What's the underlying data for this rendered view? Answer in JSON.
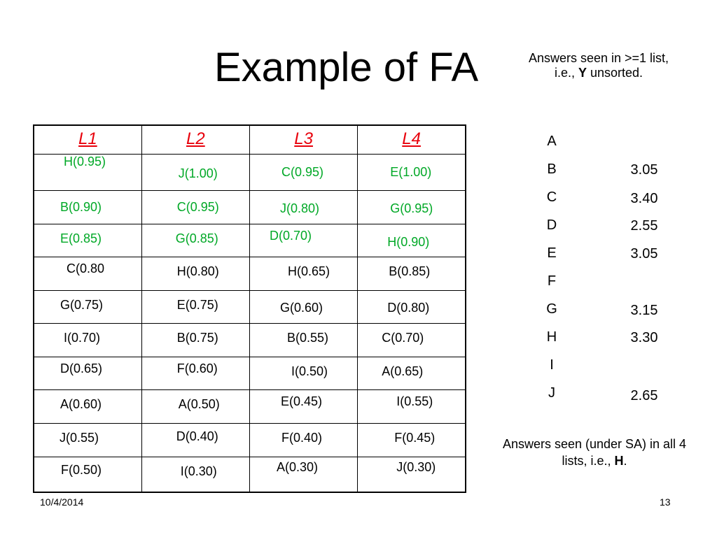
{
  "title": "Example of FA",
  "note_top": {
    "prefix": "Answers seen in >=1 list, i.e., ",
    "bold": "Y",
    "suffix": " unsorted."
  },
  "note_bottom": {
    "prefix": "Answers seen (under SA) in all 4 lists, i.e., ",
    "bold": "H",
    "suffix": "."
  },
  "headers": [
    "L1",
    "L2",
    "L3",
    "L4"
  ],
  "rows": [
    [
      "H(0.95)",
      "J(1.00)",
      "C(0.95)",
      "E(1.00)"
    ],
    [
      "B(0.90)",
      "C(0.95)",
      "J(0.80)",
      "G(0.95)"
    ],
    [
      "E(0.85)",
      "G(0.85)",
      "D(0.70)",
      "H(0.90)"
    ],
    [
      "C(0.80",
      "H(0.80)",
      "H(0.65)",
      "B(0.85)"
    ],
    [
      "G(0.75)",
      "E(0.75)",
      "G(0.60)",
      "D(0.80)"
    ],
    [
      "I(0.70)",
      "B(0.75)",
      "B(0.55)",
      "C(0.70)"
    ],
    [
      "D(0.65)",
      "F(0.60)",
      "I(0.50)",
      "A(0.65)"
    ],
    [
      "A(0.60)",
      "A(0.50)",
      "E(0.45)",
      "I(0.55)"
    ],
    [
      "J(0.55)",
      "D(0.40)",
      "F(0.40)",
      "F(0.45)"
    ],
    [
      "F(0.50)",
      "I(0.30)",
      "A(0.30)",
      "J(0.30)"
    ]
  ],
  "highlight_color": "#00a826",
  "header_color": "#e8000b",
  "answers": [
    {
      "letter": "A",
      "score": ""
    },
    {
      "letter": "B",
      "score": "3.05"
    },
    {
      "letter": "C",
      "score": "3.40"
    },
    {
      "letter": "D",
      "score": "2.55"
    },
    {
      "letter": "E",
      "score": "3.05"
    },
    {
      "letter": "F",
      "score": ""
    },
    {
      "letter": "G",
      "score": "3.15"
    },
    {
      "letter": "H",
      "score": "3.30"
    },
    {
      "letter": "I",
      "score": ""
    },
    {
      "letter": "J",
      "score": "2.65"
    }
  ],
  "footer": {
    "date": "10/4/2014",
    "page": "13"
  }
}
